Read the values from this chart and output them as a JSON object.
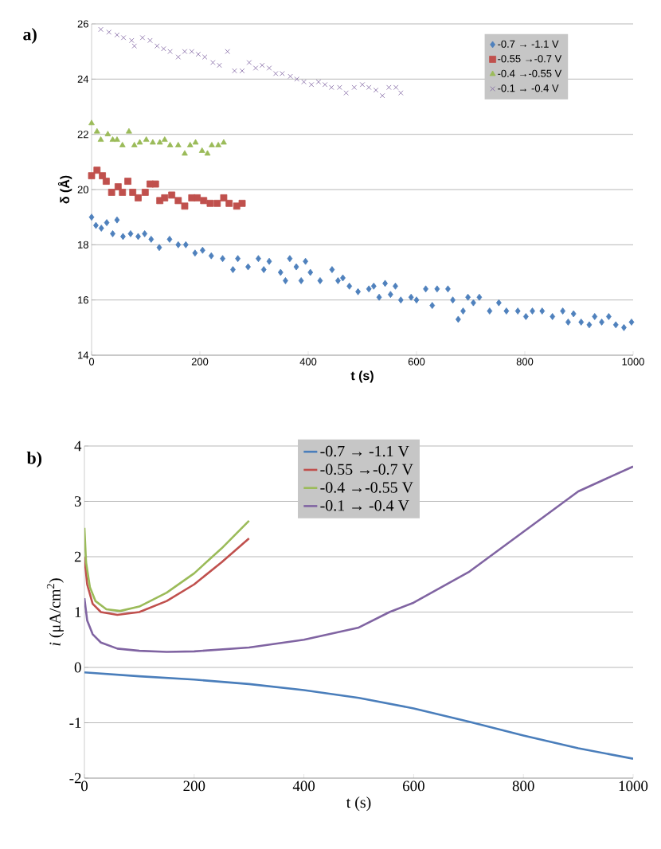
{
  "chart_data": [
    {
      "type": "scatter",
      "title": "a)",
      "xlabel": "t (s)",
      "ylabel": "δ (Å)",
      "xlim": [
        0,
        1000
      ],
      "ylim": [
        14,
        26
      ],
      "xticks": [
        0,
        200,
        400,
        600,
        800,
        1000
      ],
      "yticks": [
        14,
        16,
        18,
        20,
        22,
        24,
        26
      ],
      "grid": "y",
      "legend": "top right",
      "series": [
        {
          "name": "-0.7 → -1.1 V",
          "color": "#4f81bd",
          "marker": "diamond",
          "x": [
            0,
            8,
            18,
            28,
            39,
            47,
            58,
            72,
            86,
            98,
            110,
            125,
            144,
            160,
            174,
            191,
            205,
            221,
            242,
            261,
            270,
            289,
            308,
            318,
            328,
            349,
            358,
            366,
            378,
            387,
            395,
            404,
            422,
            444,
            455,
            464,
            476,
            492,
            512,
            521,
            531,
            542,
            552,
            561,
            571,
            590,
            600,
            617,
            629,
            638,
            658,
            667,
            677,
            686,
            695,
            705,
            716,
            735,
            752,
            766,
            787,
            802,
            814,
            832,
            851,
            870,
            880,
            890,
            904,
            919,
            929,
            942,
            955,
            968,
            983,
            997
          ],
          "values": [
            19.0,
            18.7,
            18.6,
            18.8,
            18.4,
            18.9,
            18.3,
            18.4,
            18.3,
            18.4,
            18.2,
            17.9,
            18.2,
            18.0,
            18.0,
            17.7,
            17.8,
            17.6,
            17.5,
            17.1,
            17.5,
            17.2,
            17.5,
            17.1,
            17.4,
            17.0,
            16.7,
            17.5,
            17.2,
            16.7,
            17.4,
            17.0,
            16.7,
            17.1,
            16.7,
            16.8,
            16.5,
            16.3,
            16.4,
            16.5,
            16.1,
            16.6,
            16.2,
            16.5,
            16.0,
            16.1,
            16.0,
            16.4,
            15.8,
            16.4,
            16.4,
            16.0,
            15.3,
            15.6,
            16.1,
            15.9,
            16.1,
            15.6,
            15.9,
            15.6,
            15.6,
            15.4,
            15.6,
            15.6,
            15.4,
            15.6,
            15.2,
            15.5,
            15.2,
            15.1,
            15.4,
            15.2,
            15.4,
            15.1,
            15.0,
            15.2
          ]
        },
        {
          "name": "-0.55 →-0.7 V",
          "color": "#c0504d",
          "marker": "square",
          "x": [
            0,
            10,
            20,
            27,
            37,
            49,
            57,
            67,
            76,
            86,
            99,
            108,
            118,
            126,
            135,
            148,
            160,
            172,
            185,
            195,
            207,
            219,
            232,
            244,
            254,
            268,
            278
          ],
          "values": [
            20.5,
            20.7,
            20.5,
            20.3,
            19.9,
            20.1,
            19.9,
            20.3,
            19.9,
            19.7,
            19.9,
            20.2,
            20.2,
            19.6,
            19.7,
            19.8,
            19.6,
            19.4,
            19.7,
            19.7,
            19.6,
            19.5,
            19.5,
            19.7,
            19.5,
            19.4,
            19.5
          ]
        },
        {
          "name": "-0.4 →-0.55 V",
          "color": "#9bbb59",
          "marker": "triangle",
          "x": [
            0,
            10,
            17,
            30,
            39,
            47,
            57,
            69,
            79,
            89,
            101,
            113,
            126,
            135,
            145,
            160,
            172,
            182,
            192,
            204,
            214,
            222,
            234,
            244
          ],
          "values": [
            22.4,
            22.1,
            21.8,
            22.0,
            21.8,
            21.8,
            21.6,
            22.1,
            21.6,
            21.7,
            21.8,
            21.7,
            21.7,
            21.8,
            21.6,
            21.6,
            21.3,
            21.6,
            21.7,
            21.4,
            21.3,
            21.6,
            21.6,
            21.7
          ]
        },
        {
          "name": "-0.1 → -0.4 V",
          "color": "#8064a2",
          "marker": "cross",
          "x": [
            17,
            32,
            47,
            59,
            74,
            79,
            94,
            108,
            121,
            133,
            145,
            160,
            172,
            185,
            197,
            209,
            224,
            236,
            251,
            264,
            278,
            291,
            303,
            315,
            328,
            340,
            352,
            367,
            379,
            392,
            406,
            419,
            431,
            443,
            458,
            470,
            485,
            500,
            512,
            525,
            537,
            549,
            562,
            571
          ],
          "values": [
            25.8,
            25.7,
            25.6,
            25.5,
            25.4,
            25.2,
            25.5,
            25.4,
            25.2,
            25.1,
            25.0,
            24.8,
            25.0,
            25.0,
            24.9,
            24.8,
            24.6,
            24.5,
            25.0,
            24.3,
            24.3,
            24.6,
            24.4,
            24.5,
            24.4,
            24.2,
            24.2,
            24.1,
            24.0,
            23.9,
            23.8,
            23.9,
            23.8,
            23.7,
            23.7,
            23.5,
            23.7,
            23.8,
            23.7,
            23.6,
            23.4,
            23.7,
            23.7,
            23.5
          ]
        }
      ]
    },
    {
      "type": "line",
      "title": "b)",
      "xlabel": "t (s)",
      "ylabel": "*i* (μA/cm$^{2}$)",
      "xlim": [
        0,
        1000
      ],
      "ylim": [
        -2,
        4
      ],
      "xticks": [
        0,
        200,
        400,
        600,
        800,
        1000
      ],
      "yticks": [
        -2,
        -1,
        0,
        1,
        2,
        3,
        4
      ],
      "grid": "y",
      "legend": "top",
      "line_style": "solid",
      "series": [
        {
          "name": "-0.7 → -1.1 V",
          "color": "#4a7ebb",
          "x": [
            0,
            100,
            200,
            300,
            400,
            500,
            600,
            700,
            800,
            900,
            1000
          ],
          "values": [
            -0.09,
            -0.16,
            -0.22,
            -0.3,
            -0.41,
            -0.55,
            -0.74,
            -0.98,
            -1.23,
            -1.46,
            -1.65
          ]
        },
        {
          "name": "-0.55 →-0.7 V",
          "color": "#c0504d",
          "x": [
            0,
            5,
            15,
            30,
            60,
            100,
            150,
            200,
            250,
            300
          ],
          "values": [
            2.0,
            1.5,
            1.15,
            1.0,
            0.95,
            1.0,
            1.2,
            1.5,
            1.9,
            2.33
          ]
        },
        {
          "name": "-0.4 →-0.55 V",
          "color": "#9bbb59",
          "x": [
            0,
            3,
            10,
            20,
            40,
            65,
            100,
            150,
            200,
            250,
            300
          ],
          "values": [
            2.52,
            1.9,
            1.45,
            1.2,
            1.05,
            1.02,
            1.1,
            1.35,
            1.7,
            2.15,
            2.65
          ]
        },
        {
          "name": "-0.1 → -0.4 V",
          "color": "#8064a2",
          "x": [
            0,
            5,
            15,
            30,
            60,
            100,
            150,
            200,
            300,
            400,
            500,
            556,
            600,
            700,
            800,
            900,
            1000
          ],
          "values": [
            1.25,
            0.85,
            0.6,
            0.45,
            0.34,
            0.3,
            0.28,
            0.29,
            0.36,
            0.5,
            0.72,
            1.0,
            1.17,
            1.72,
            2.45,
            3.18,
            3.63
          ]
        }
      ]
    }
  ]
}
